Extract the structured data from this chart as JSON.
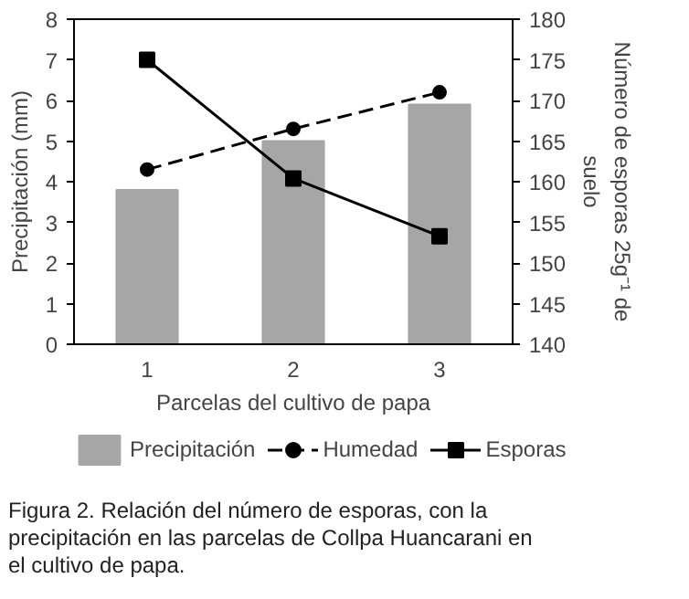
{
  "chart_data": {
    "type": "bar",
    "xlabel": "Parcelas del cultivo de papa",
    "ylabel": "Precipitación (mm)",
    "y2label": "Número de esporas 25g⁻¹ de suelo",
    "categories": [
      "1",
      "2",
      "3"
    ],
    "series": [
      {
        "name": "Precipitación",
        "color": "#a6a6a6",
        "values": [
          3.8,
          5.0,
          5.9
        ]
      },
      {
        "name": "Humedad",
        "type": "line",
        "axis": "y2",
        "color": "#000000",
        "marker": "circle",
        "line_style": "dashed",
        "values": [
          161.5,
          166.5,
          171
        ]
      },
      {
        "name": "Esporas",
        "type": "line",
        "axis": "y2",
        "color": "#000000",
        "marker": "square",
        "line_style": "solid",
        "values": [
          175,
          160.4,
          153.3
        ]
      }
    ],
    "ylim": [
      0,
      8
    ],
    "yticks": [
      0,
      1,
      2,
      3,
      4,
      5,
      6,
      7,
      8
    ],
    "y2lim": [
      140,
      180
    ],
    "y2ticks": [
      140,
      145,
      150,
      155,
      160,
      165,
      170,
      175,
      180
    ],
    "grid": false,
    "legend": "bottom",
    "annotations": [
      "Figura 2. Relación del número de esporas, con la precipitación en las parcelas de Collpa Huancarani en el cultivo de papa."
    ]
  }
}
